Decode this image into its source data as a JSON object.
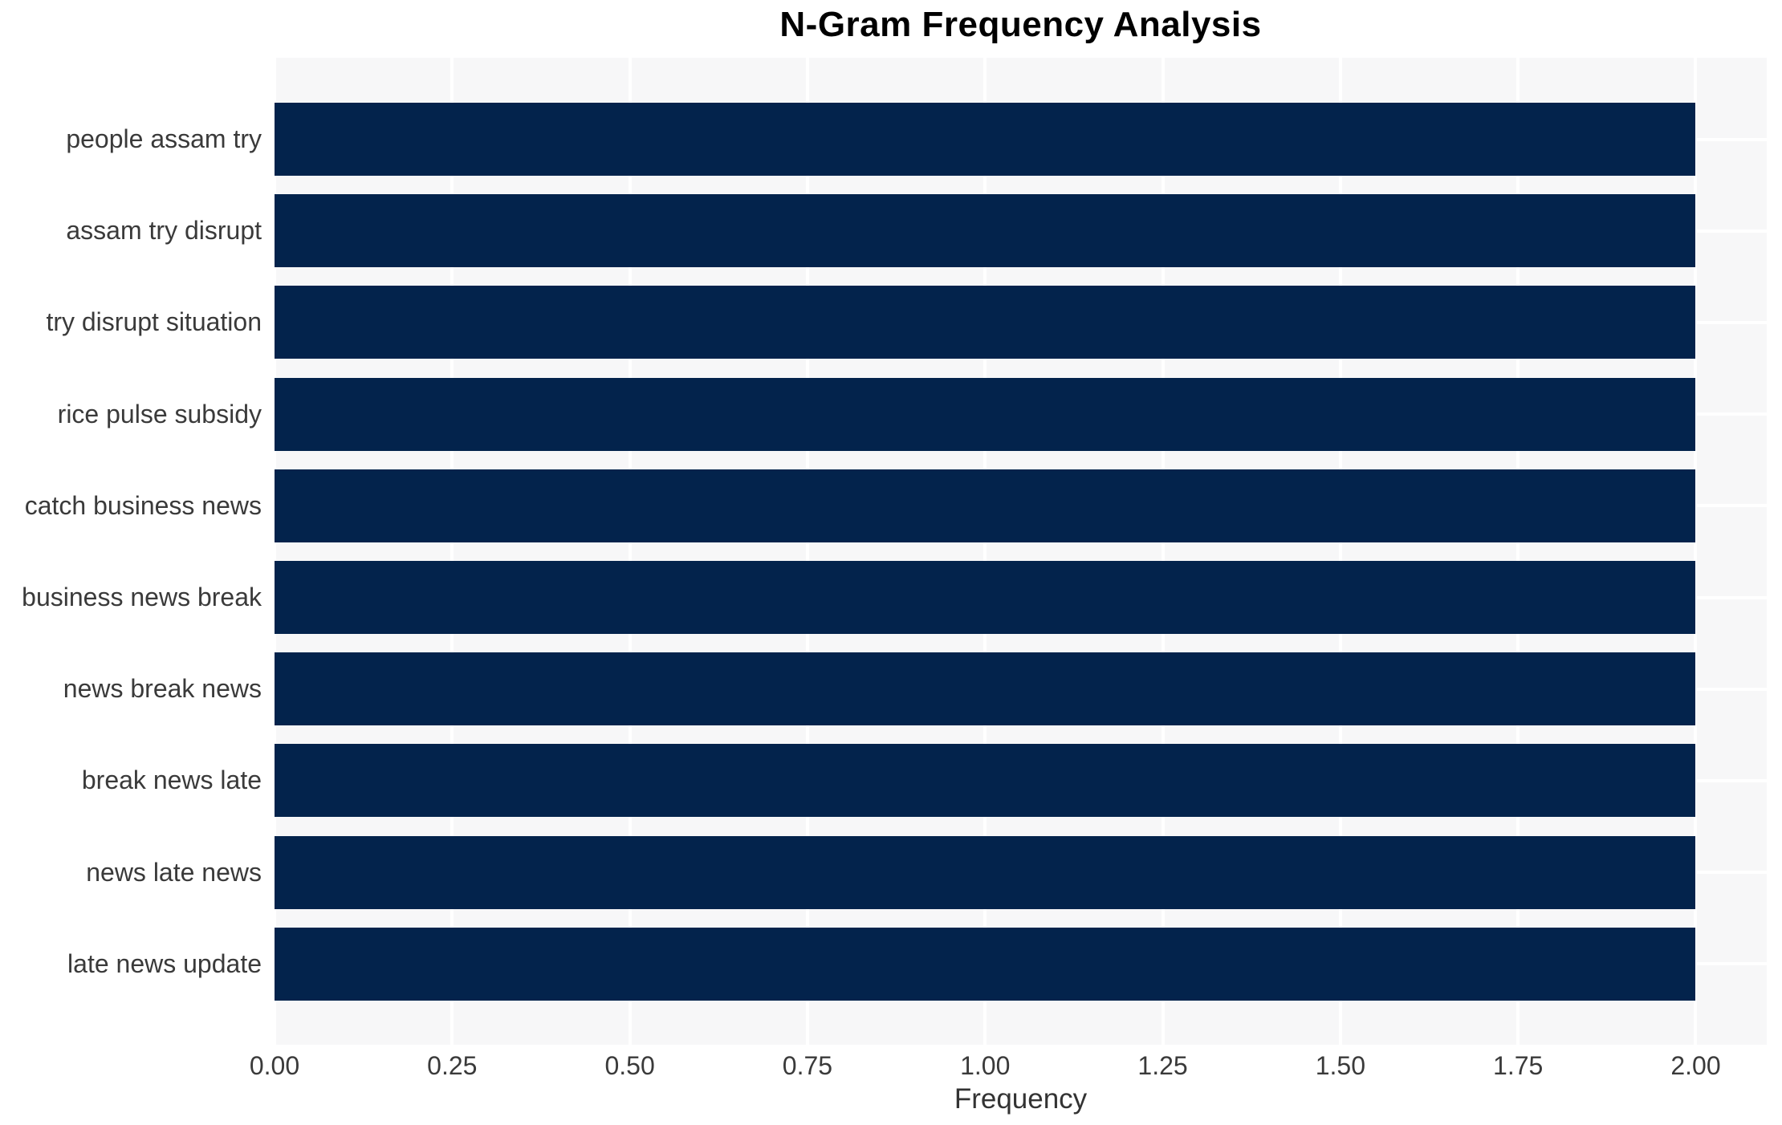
{
  "chart_data": {
    "type": "bar",
    "orientation": "horizontal",
    "title": "N-Gram Frequency Analysis",
    "xlabel": "Frequency",
    "categories": [
      "people assam try",
      "assam try disrupt",
      "try disrupt situation",
      "rice pulse subsidy",
      "catch business news",
      "business news break",
      "news break news",
      "break news late",
      "news late news",
      "late news update"
    ],
    "values": [
      2,
      2,
      2,
      2,
      2,
      2,
      2,
      2,
      2,
      2
    ],
    "x_ticks": [
      "0.00",
      "0.25",
      "0.50",
      "0.75",
      "1.00",
      "1.25",
      "1.50",
      "1.75",
      "2.00"
    ],
    "xlim": [
      0,
      2.1
    ],
    "grid": true,
    "legend": "none",
    "bar_color": "#03234c",
    "plot_background": "#f7f7f8",
    "grid_color": "#ffffff",
    "title_color": "#000000",
    "label_color": "#3a3a3a"
  }
}
